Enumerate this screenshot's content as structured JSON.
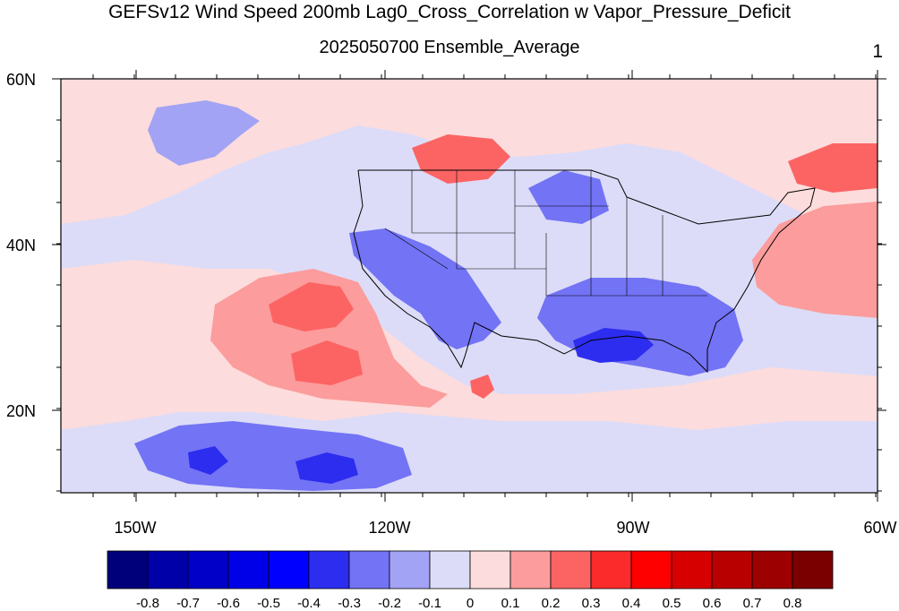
{
  "title": "GEFSv12 Wind Speed 200mb Lag0_Cross_Correlation w Vapor_Pressure_Deficit",
  "subtitle": "2025050700 Ensemble_Average",
  "panel_number": "1",
  "map": {
    "lat_labels": [
      "60N",
      "40N",
      "20N"
    ],
    "lon_labels": [
      "150W",
      "120W",
      "90W",
      "60W"
    ],
    "shading": {
      "background": "#dcdcf8",
      "features": [
        {
          "name": "north-pacific-red-band",
          "color": "#fcdcdc"
        },
        {
          "name": "gulf-of-alaska-blue",
          "color": "#a3a3f5"
        },
        {
          "name": "pacific-red-lobe",
          "color": "#fc9c9c"
        },
        {
          "name": "pacific-red-core",
          "color": "#fc6464"
        },
        {
          "name": "south-pacific-blue",
          "color": "#7373f5"
        },
        {
          "name": "south-pacific-blue-core",
          "color": "#2d2df0"
        },
        {
          "name": "western-us-blue",
          "color": "#7373f5"
        },
        {
          "name": "southeast-us-blue",
          "color": "#7373f5"
        },
        {
          "name": "gulf-blue-core",
          "color": "#2d2df0"
        },
        {
          "name": "atlantic-red",
          "color": "#fc9c9c"
        },
        {
          "name": "canada-red",
          "color": "#fc6464"
        }
      ]
    }
  },
  "colorbar": {
    "colors": [
      "#00007a",
      "#0000a8",
      "#0000c8",
      "#0000e8",
      "#0000ff",
      "#2d2df0",
      "#7373f5",
      "#a3a3f5",
      "#dcdcf8",
      "#fcdcdc",
      "#fc9c9c",
      "#fc6464",
      "#fc2b2b",
      "#ff0000",
      "#d60000",
      "#b80000",
      "#9c0000",
      "#7a0000"
    ],
    "labels": [
      "-0.8",
      "-0.7",
      "-0.6",
      "-0.5",
      "-0.4",
      "-0.3",
      "-0.2",
      "-0.1",
      "0",
      "0.1",
      "0.2",
      "0.3",
      "0.4",
      "0.5",
      "0.6",
      "0.7",
      "0.8"
    ]
  }
}
